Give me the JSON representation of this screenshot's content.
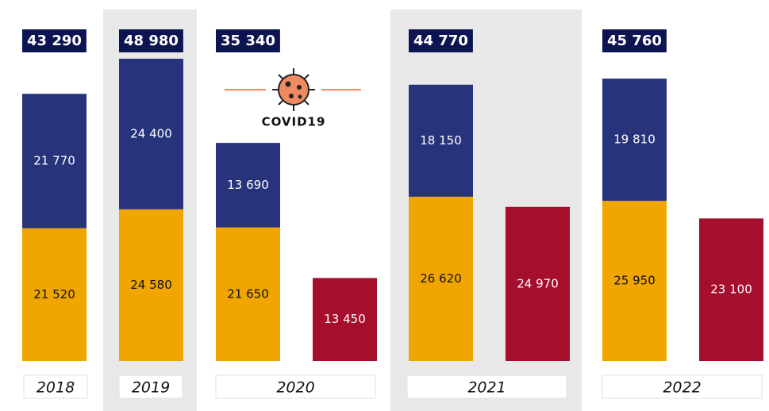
{
  "chart_data": {
    "type": "stacked_bar",
    "annotation": "COVID19",
    "categories": [
      "2018",
      "2019",
      "2020",
      "2021",
      "2022"
    ],
    "series": [
      {
        "color": "#f0a500",
        "stack": "main",
        "label_color": "#111111",
        "values": [
          21520,
          24580,
          21650,
          26620,
          25950
        ],
        "value_labels": [
          "21 520",
          "24 580",
          "21 650",
          "26 620",
          "25 950"
        ]
      },
      {
        "color": "#27347c",
        "stack": "main",
        "label_color": "#ffffff",
        "values": [
          21770,
          24400,
          13690,
          18150,
          19810
        ],
        "value_labels": [
          "21 770",
          "24 400",
          "13 690",
          "18 150",
          "19 810"
        ]
      },
      {
        "color": "#a50e2c",
        "stack": "side",
        "label_color": "#ffffff",
        "values": [
          null,
          null,
          13450,
          24970,
          23100
        ],
        "value_labels": [
          null,
          null,
          "13 450",
          "24 970",
          "23 100"
        ]
      }
    ],
    "totals": {
      "values": [
        43290,
        48980,
        35340,
        44770,
        45760
      ],
      "value_labels": [
        "43 290",
        "48 980",
        "35 340",
        "44 770",
        "45 760"
      ]
    }
  }
}
